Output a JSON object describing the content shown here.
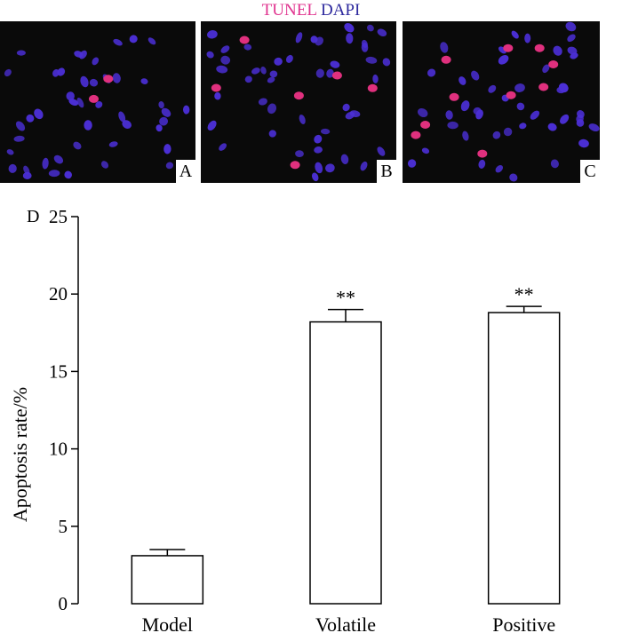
{
  "figure": {
    "legend": {
      "tunel": "TUNEL",
      "dapi": "DAPI"
    },
    "panels": [
      {
        "letter": "A",
        "nuclei": 44,
        "tunel_positive": 2
      },
      {
        "letter": "B",
        "nuclei": 48,
        "tunel_positive": 6
      },
      {
        "letter": "C",
        "nuclei": 44,
        "tunel_positive": 10
      }
    ],
    "colors": {
      "dapi": "#4b2fd6",
      "tunel": "#e0307e",
      "background": "#0a0a0a"
    }
  },
  "chart_data": {
    "type": "bar",
    "panel_label": "D",
    "categories": [
      "Model",
      "Volatile",
      "Positive"
    ],
    "values": [
      3.1,
      18.2,
      18.8
    ],
    "errors": [
      0.4,
      0.8,
      0.4
    ],
    "significance": [
      "",
      "**",
      "**"
    ],
    "ylabel": "Apoptosis rate/%",
    "xlabel": "",
    "ylim": [
      0,
      25
    ],
    "yticks": [
      0,
      5,
      10,
      15,
      20,
      25
    ],
    "grid": false,
    "bar_fill": "#ffffff",
    "bar_stroke": "#000000"
  }
}
